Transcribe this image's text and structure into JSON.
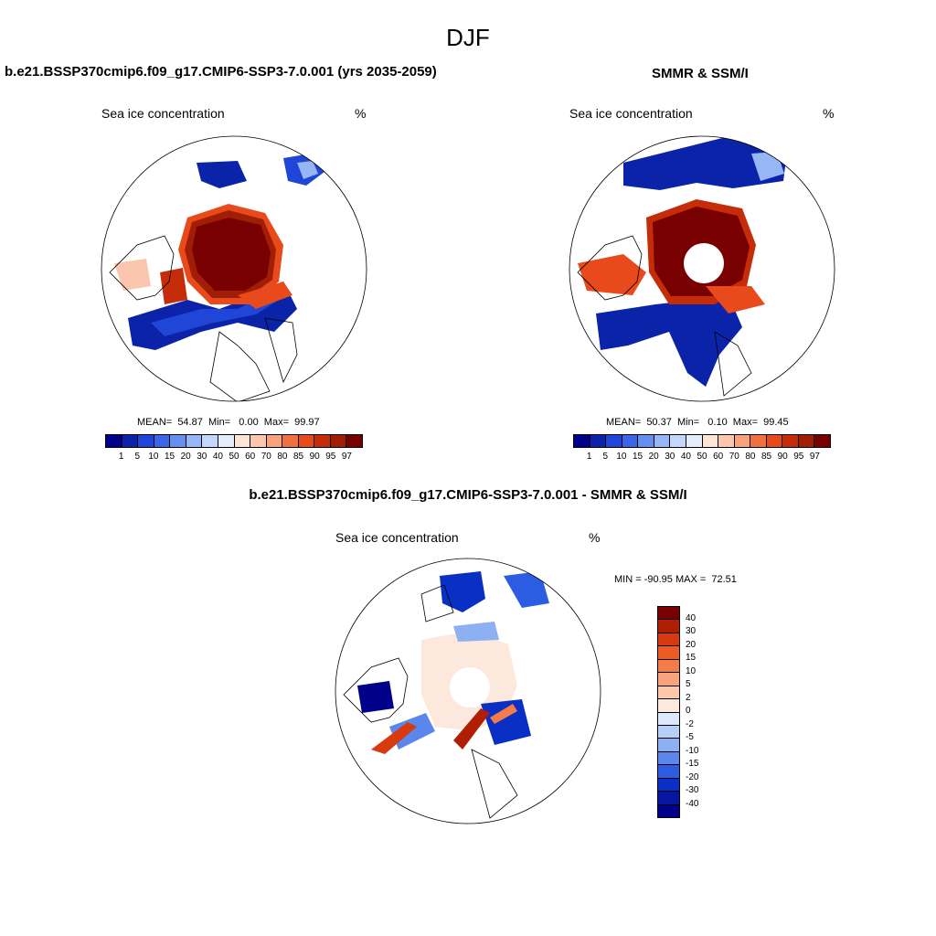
{
  "figure_title": "DJF",
  "panels": {
    "model": {
      "title": "b.e21.BSSP370cmip6.f09_g17.CMIP6-SSP3-7.0.001 (yrs 2035-2059)",
      "variable": "Sea ice concentration",
      "units": "%",
      "stats": "MEAN=  54.87  Min=   0.00  Max=  99.97"
    },
    "observations": {
      "title": "SMMR & SSM/I",
      "variable": "Sea ice concentration",
      "units": "%",
      "stats": "MEAN=  50.37  Min=   0.10  Max=  99.45"
    },
    "difference": {
      "title": "b.e21.BSSP370cmip6.f09_g17.CMIP6-SSP3-7.0.001 - SMMR & SSM/I",
      "variable": "Sea ice concentration",
      "units": "%",
      "stats": "MIN = -90.95 MAX =  72.51"
    }
  },
  "colorbar_main": {
    "labels": [
      "1",
      "5",
      "10",
      "15",
      "20",
      "30",
      "40",
      "50",
      "60",
      "70",
      "80",
      "85",
      "90",
      "95",
      "97"
    ],
    "colors": [
      "#00008b",
      "#0a23a8",
      "#1f46d6",
      "#3a66e8",
      "#6690f0",
      "#96b6f5",
      "#c3d7fa",
      "#e4eefb",
      "#fde4d6",
      "#fac6ae",
      "#f7a27e",
      "#f07040",
      "#e84a1c",
      "#c42c0a",
      "#a01e05",
      "#780000"
    ]
  },
  "colorbar_diff": {
    "labels": [
      "40",
      "30",
      "20",
      "15",
      "10",
      "5",
      "2",
      "0",
      "-2",
      "-5",
      "-10",
      "-15",
      "-20",
      "-30",
      "-40"
    ],
    "colors": [
      "#780000",
      "#b01e05",
      "#d83a10",
      "#ee5a24",
      "#f47c4a",
      "#f9a27e",
      "#fcc8ac",
      "#fde8de",
      "#dce8fb",
      "#b8cff8",
      "#8cb0f2",
      "#5b86ec",
      "#2c5ce2",
      "#0a2fc4",
      "#0616a0",
      "#00008b"
    ]
  }
}
